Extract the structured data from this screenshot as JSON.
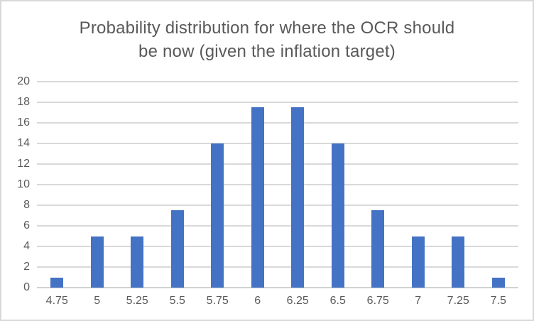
{
  "window": {
    "background": "#ffffff",
    "border_color": "#d9d9d9"
  },
  "chart_data": {
    "type": "bar",
    "title": "Probability distribution for where the OCR should be now (given the inflation target)",
    "title_lines": [
      "Probability distribution for where the OCR should",
      "be now (given the inflation target)"
    ],
    "categories": [
      "4.75",
      "5",
      "5.25",
      "5.5",
      "5.75",
      "6",
      "6.25",
      "6.5",
      "6.75",
      "7",
      "7.25",
      "7.5"
    ],
    "values": [
      1,
      5,
      5,
      7.5,
      14,
      17.5,
      17.5,
      14,
      7.5,
      5,
      5,
      1
    ],
    "xlabel": "",
    "ylabel": "",
    "ylim": [
      0,
      20
    ],
    "yticks": [
      0,
      2,
      4,
      6,
      8,
      10,
      12,
      14,
      16,
      18,
      20
    ],
    "grid": true,
    "legend": false,
    "colors": {
      "bar": "#4472c4",
      "gridline": "#d9d9d9",
      "axis_line": "#d2d2d2",
      "text": "#595959"
    }
  }
}
